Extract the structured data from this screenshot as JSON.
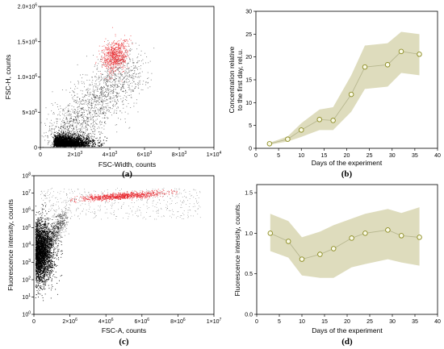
{
  "colors": {
    "dots_black": "#000000",
    "dots_red": "#e8252b",
    "band_fill": "#dedcbd",
    "marker": "#8a8a20",
    "line": "#b8b890"
  },
  "chart_data": [
    {
      "type": "scatter",
      "panel_label": "(a)",
      "xlabel": "FSC-Width, counts",
      "ylabel": "FSC-H, counts",
      "xlim": [
        0,
        10000
      ],
      "ylim": [
        0,
        2000000
      ],
      "x_ticks": [
        {
          "v": 0,
          "m": "0",
          "e": ""
        },
        {
          "v": 2000,
          "m": "2×10",
          "e": "3"
        },
        {
          "v": 4000,
          "m": "4×10",
          "e": "3"
        },
        {
          "v": 6000,
          "m": "6×10",
          "e": "3"
        },
        {
          "v": 8000,
          "m": "8×10",
          "e": "3"
        },
        {
          "v": 10000,
          "m": "1×10",
          "e": "4"
        }
      ],
      "y_ticks": [
        {
          "v": 0,
          "m": "0",
          "e": ""
        },
        {
          "v": 500000,
          "m": "5×10",
          "e": "5"
        },
        {
          "v": 1000000,
          "m": "1.0×10",
          "e": "6"
        },
        {
          "v": 1500000,
          "m": "1.5×10",
          "e": "6"
        },
        {
          "v": 2000000,
          "m": "2.0×10",
          "e": "6"
        }
      ],
      "clusters": [
        {
          "color": "dots_black",
          "cx": 1200,
          "cy": 80000
        },
        {
          "color": "dots_black",
          "cx": 2800,
          "cy": 600000
        },
        {
          "color": "dots_red",
          "cx": 4300,
          "cy": 1300000
        }
      ]
    },
    {
      "type": "line",
      "panel_label": "(b)",
      "xlabel": "Days of the experiment",
      "ylabel": [
        "Concentration relative",
        "to the first day, rel.u."
      ],
      "xlim": [
        0,
        40
      ],
      "ylim": [
        0,
        30
      ],
      "x_ticks": [
        0,
        5,
        10,
        15,
        20,
        25,
        30,
        35,
        40
      ],
      "y_ticks": [
        0,
        5,
        10,
        15,
        20,
        25,
        30
      ],
      "x": [
        3,
        7,
        10,
        14,
        17,
        21,
        24,
        29,
        32,
        36
      ],
      "y": [
        1.0,
        2.0,
        4.0,
        6.3,
        6.1,
        11.8,
        17.8,
        18.3,
        21.2,
        20.6
      ],
      "band_low": [
        0.8,
        1.5,
        2.5,
        4.0,
        4.0,
        8.0,
        13.0,
        13.5,
        16.5,
        16.0
      ],
      "band_high": [
        1.2,
        2.6,
        5.5,
        8.5,
        9.0,
        16.0,
        22.5,
        23.0,
        25.5,
        25.0
      ]
    },
    {
      "type": "scatter",
      "panel_label": "(c)",
      "xlabel": "FSC-A, counts",
      "ylabel": "Fluorescence intensity, counts",
      "xlim": [
        0,
        10000000
      ],
      "ylim_log10": [
        0,
        8
      ],
      "x_ticks": [
        {
          "v": 0,
          "m": "0",
          "e": ""
        },
        {
          "v": 2000000,
          "m": "2×10",
          "e": "6"
        },
        {
          "v": 4000000,
          "m": "4×10",
          "e": "6"
        },
        {
          "v": 6000000,
          "m": "6×10",
          "e": "6"
        },
        {
          "v": 8000000,
          "m": "8×10",
          "e": "6"
        },
        {
          "v": 10000000,
          "m": "1×10",
          "e": "7"
        }
      ],
      "y_ticks": [
        {
          "v": 0,
          "m": "10",
          "e": "0"
        },
        {
          "v": 1,
          "m": "10",
          "e": "1"
        },
        {
          "v": 2,
          "m": "10",
          "e": "2"
        },
        {
          "v": 3,
          "m": "10",
          "e": "3"
        },
        {
          "v": 4,
          "m": "10",
          "e": "4"
        },
        {
          "v": 5,
          "m": "10",
          "e": "5"
        },
        {
          "v": 6,
          "m": "10",
          "e": "6"
        },
        {
          "v": 7,
          "m": "10",
          "e": "7"
        },
        {
          "v": 8,
          "m": "10",
          "e": "8"
        }
      ],
      "clusters": [
        {
          "color": "dots_black",
          "cx": 400000,
          "cy_log": 3.6
        },
        {
          "color": "dots_red",
          "cx": 5000000,
          "cy_log": 6.85
        }
      ]
    },
    {
      "type": "line",
      "panel_label": "(d)",
      "xlabel": "Days of the experiment",
      "ylabel": "Fluorescence intensity, counts.",
      "xlim": [
        0,
        40
      ],
      "ylim": [
        0,
        1.6
      ],
      "x_ticks": [
        0,
        5,
        10,
        15,
        20,
        25,
        30,
        35,
        40
      ],
      "y_ticks": [
        0.0,
        0.5,
        1.0,
        1.5
      ],
      "y_tick_labels": [
        "0.0",
        "0.5",
        "1.0",
        "1.5"
      ],
      "x": [
        3,
        7,
        10,
        14,
        17,
        21,
        24,
        29,
        32,
        36
      ],
      "y": [
        1.0,
        0.9,
        0.68,
        0.74,
        0.81,
        0.94,
        1.0,
        1.04,
        0.97,
        0.95
      ],
      "band_low": [
        0.78,
        0.7,
        0.48,
        0.45,
        0.45,
        0.58,
        0.62,
        0.68,
        0.64,
        0.6
      ],
      "band_high": [
        1.24,
        1.15,
        0.95,
        1.02,
        1.1,
        1.18,
        1.24,
        1.3,
        1.25,
        1.32
      ]
    }
  ]
}
